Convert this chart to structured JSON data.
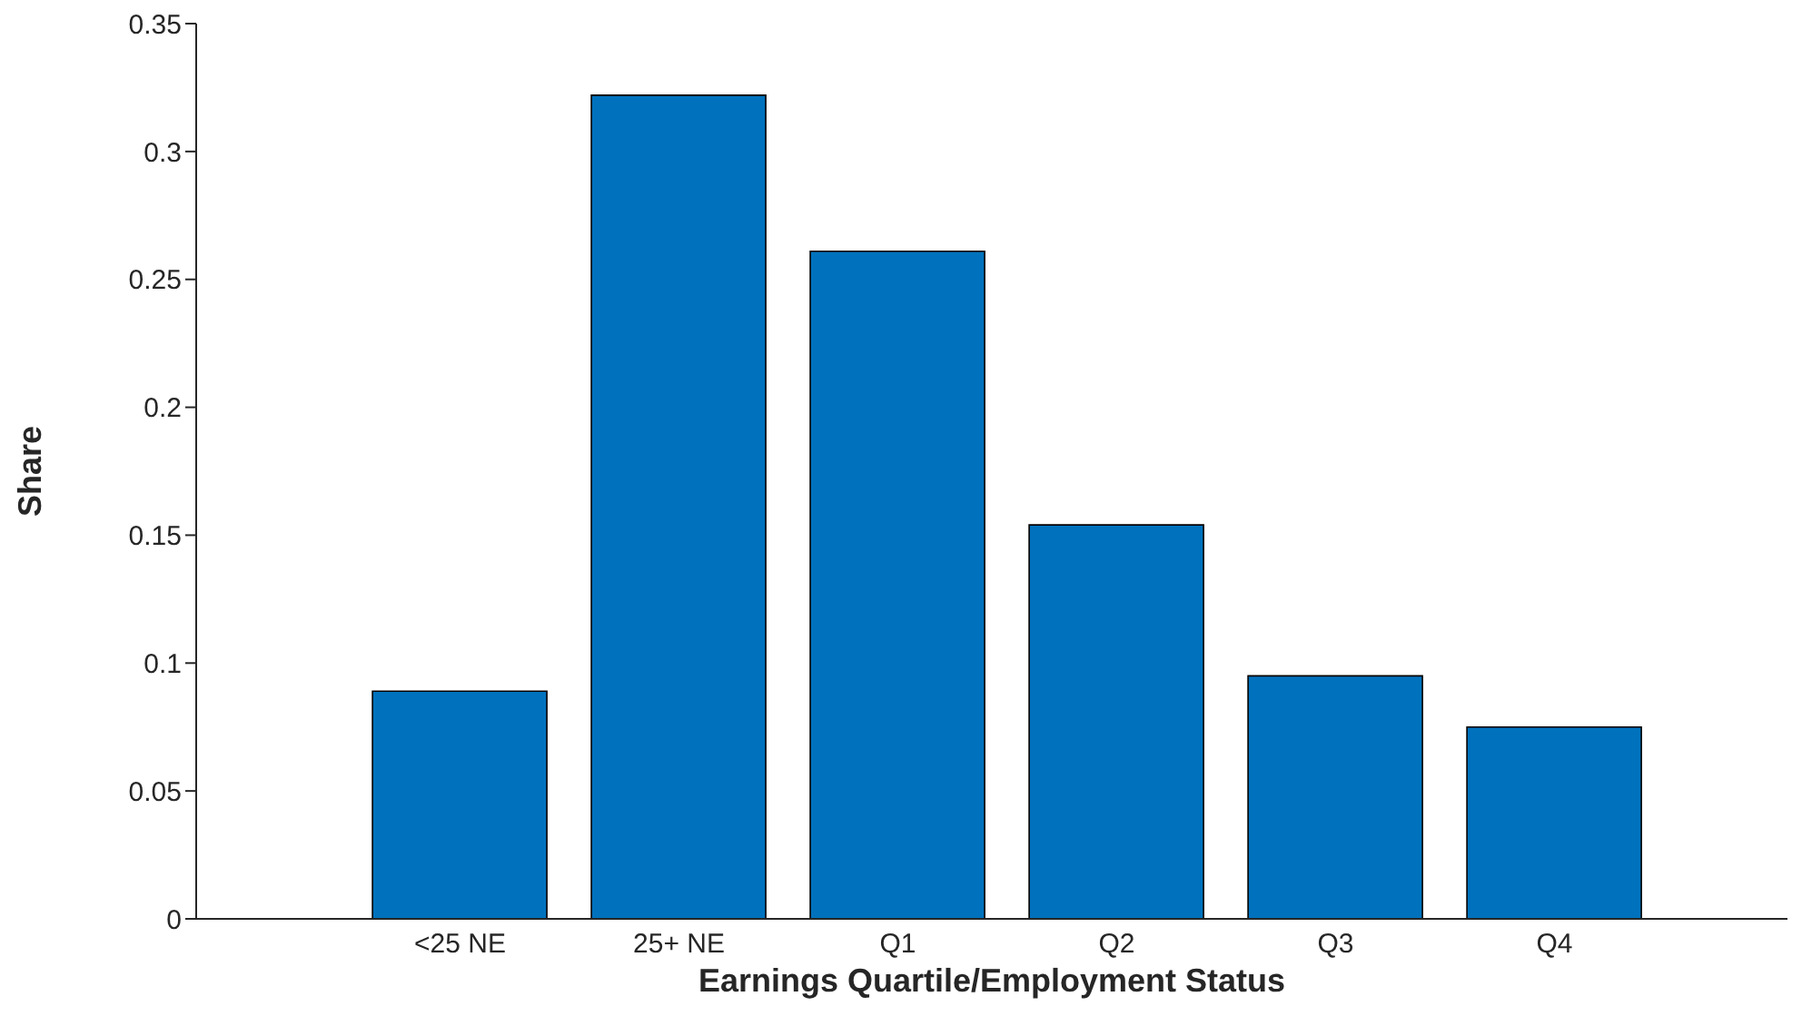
{
  "chart_data": {
    "type": "bar",
    "xlabel": "Earnings Quartile/Employment Status",
    "ylabel": "Share",
    "categories": [
      "<25 NE",
      "25+ NE",
      "Q1",
      "Q2",
      "Q3",
      "Q4"
    ],
    "values": [
      0.089,
      0.322,
      0.261,
      0.154,
      0.095,
      0.075
    ],
    "color": "#0072bd",
    "ylim": [
      0,
      0.35
    ],
    "yticks": [
      0,
      0.05,
      0.1,
      0.15,
      0.2,
      0.25,
      0.3,
      0.35
    ],
    "grid": false,
    "legend": false
  }
}
